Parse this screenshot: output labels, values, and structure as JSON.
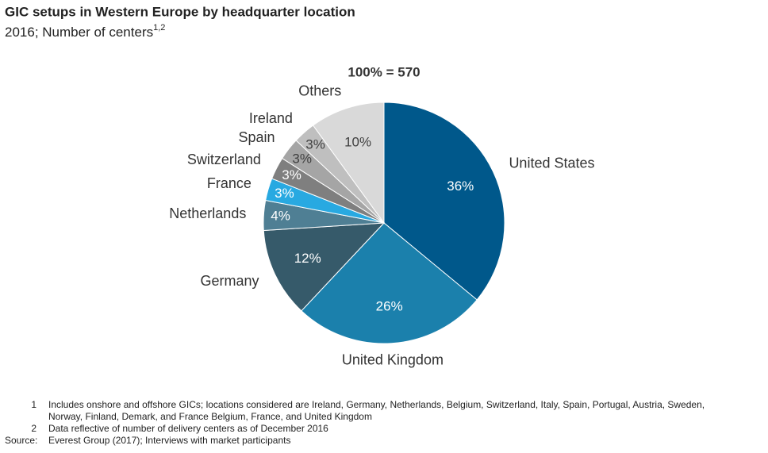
{
  "chart_data": {
    "type": "pie",
    "title": "GIC setups in Western Europe by headquarter location",
    "subtitle": "2016; Number of centers",
    "subtitle_note": "1,2",
    "total_label": "100% = 570",
    "categories": [
      "United States",
      "United Kingdom",
      "Germany",
      "Netherlands",
      "France",
      "Switzerland",
      "Spain",
      "Ireland",
      "Others"
    ],
    "values": [
      36,
      26,
      12,
      4,
      3,
      3,
      3,
      3,
      10
    ],
    "value_labels": [
      "36%",
      "26%",
      "12%",
      "4%",
      "3%",
      "3%",
      "3%",
      "3%",
      "10%"
    ],
    "colors": [
      "#00588b",
      "#1b80ac",
      "#365a6a",
      "#4f7f94",
      "#28a9e1",
      "#7f7f7f",
      "#a5a5a5",
      "#bfbfbf",
      "#d9d9d9"
    ]
  },
  "footnotes": [
    {
      "marker": "1",
      "text": "Includes onshore and offshore GICs; locations considered are Ireland, Germany, Netherlands, Belgium, Switzerland, Italy, Spain, Portugal, Austria, Sweden,"
    },
    {
      "marker": null,
      "text": "Norway, Finland, Demark, and France Belgium, France, and United Kingdom"
    },
    {
      "marker": "2",
      "text": "Data reflective of number of delivery centers as of December 2016"
    }
  ],
  "source": {
    "label": "Source:",
    "text": "Everest Group (2017); Interviews with market participants"
  }
}
